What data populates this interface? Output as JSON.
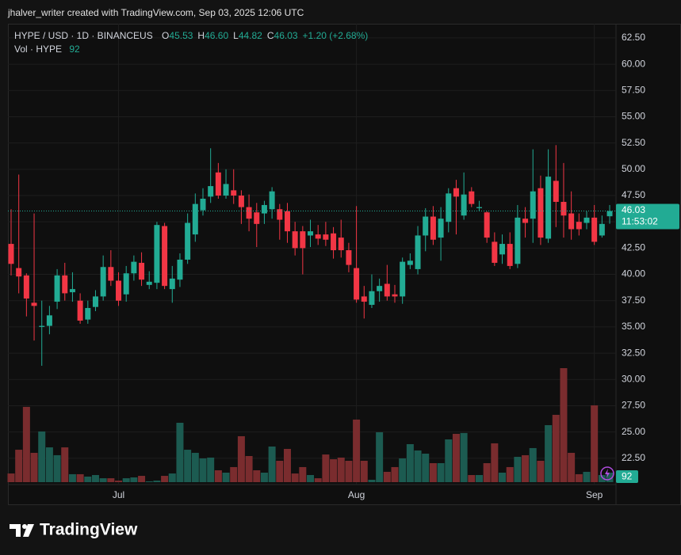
{
  "chart_data": {
    "type": "candlestick",
    "attribution": "jhalver_writer created with TradingView.com, Sep 03, 2025 12:06 UTC",
    "brand": "TradingView",
    "legend": {
      "symbol": "HYPE / USD · 1D · BINANCEUS",
      "fields": [
        {
          "label": "O",
          "value": "45.53"
        },
        {
          "label": "H",
          "value": "46.60"
        },
        {
          "label": "L",
          "value": "44.82"
        },
        {
          "label": "C",
          "value": "46.03"
        }
      ],
      "change": "+1.20 (+2.68%)",
      "volume_label": "Vol · HYPE",
      "volume_value": "92"
    },
    "last_price_label": "46.03",
    "countdown": "11:53:02",
    "up_color": "#22ab94",
    "down_color": "#f23645",
    "volume_up_color": "#1c5b51",
    "volume_down_color": "#7a2c2e",
    "grid": true,
    "categories": [
      null,
      null,
      null,
      null,
      null,
      null,
      null,
      null,
      null,
      null,
      null,
      null,
      null,
      null,
      "Jul",
      null,
      null,
      null,
      null,
      null,
      null,
      null,
      null,
      null,
      null,
      null,
      null,
      null,
      null,
      null,
      null,
      null,
      null,
      null,
      null,
      null,
      null,
      null,
      null,
      null,
      null,
      null,
      null,
      null,
      null,
      "Aug",
      null,
      null,
      null,
      null,
      null,
      null,
      null,
      null,
      null,
      null,
      null,
      null,
      null,
      null,
      null,
      null,
      null,
      null,
      null,
      null,
      null,
      null,
      null,
      null,
      null,
      null,
      null,
      null,
      null,
      null,
      "Sep",
      null,
      null
    ],
    "open": [
      42.9,
      40.6,
      39.9,
      37.3,
      35.0,
      35.1,
      37.4,
      39.9,
      38.3,
      37.5,
      35.7,
      36.9,
      37.9,
      40.7,
      39.4,
      38.1,
      40.1,
      41.1,
      39.0,
      39.2,
      44.6,
      38.6,
      39.5,
      41.4,
      43.8,
      46.1,
      47.4,
      49.7,
      47.5,
      48.0,
      47.5,
      46.4,
      45.9,
      45.8,
      46.2,
      46.2,
      46.0,
      44.1,
      44.1,
      43.7,
      43.8,
      43.8,
      43.9,
      43.5,
      42.3,
      40.6,
      37.9,
      37.1,
      38.4,
      39.1,
      38.1,
      37.9,
      40.9,
      40.5,
      43.7,
      45.5,
      43.5,
      45.0,
      48.2,
      45.6,
      47.9,
      46.3,
      45.9,
      43.1,
      41.9,
      42.9,
      41.0,
      45.3,
      45.3,
      48.2,
      43.4,
      48.9,
      46.9,
      45.8,
      45.0,
      44.9,
      45.4,
      43.7,
      45.53
    ],
    "high": [
      46.2,
      49.5,
      40.1,
      45.8,
      37.5,
      37.0,
      40.5,
      41.1,
      40.2,
      38.2,
      37.5,
      38.5,
      41.8,
      42.3,
      40.2,
      40.8,
      41.8,
      42.1,
      40.3,
      45.0,
      44.9,
      40.8,
      42.0,
      45.8,
      47.7,
      48.2,
      52.0,
      50.6,
      50.0,
      50.0,
      48.0,
      47.6,
      46.8,
      47.0,
      48.3,
      46.7,
      46.8,
      45.0,
      44.6,
      45.2,
      44.7,
      45.0,
      44.5,
      45.2,
      43.0,
      46.5,
      38.9,
      40.0,
      39.6,
      40.9,
      39.0,
      41.6,
      42.0,
      44.6,
      46.3,
      46.5,
      46.4,
      48.2,
      49.0,
      49.7,
      48.3,
      47.0,
      46.0,
      44.0,
      43.8,
      44.0,
      46.6,
      46.4,
      51.9,
      49.4,
      51.9,
      52.3,
      50.6,
      47.9,
      45.8,
      46.0,
      46.6,
      45.6,
      46.6
    ],
    "low": [
      39.9,
      38.2,
      36.0,
      33.7,
      31.3,
      34.3,
      36.7,
      37.5,
      37.4,
      35.3,
      35.3,
      36.5,
      37.5,
      38.9,
      37.0,
      37.4,
      39.4,
      38.9,
      38.6,
      38.6,
      38.6,
      37.3,
      38.8,
      41.0,
      43.1,
      45.6,
      46.8,
      47.2,
      47.2,
      46.7,
      44.8,
      44.1,
      42.6,
      44.8,
      45.3,
      43.3,
      43.0,
      41.8,
      40.0,
      42.6,
      42.8,
      42.7,
      41.5,
      41.6,
      40.2,
      37.3,
      35.8,
      36.8,
      37.4,
      37.5,
      37.3,
      37.2,
      40.5,
      40.0,
      42.2,
      42.8,
      41.3,
      44.0,
      43.8,
      45.2,
      46.4,
      46.0,
      43.0,
      40.8,
      41.0,
      40.5,
      40.6,
      43.5,
      43.0,
      42.8,
      43.0,
      44.5,
      43.5,
      43.3,
      43.7,
      44.3,
      42.8,
      43.5,
      44.82
    ],
    "close": [
      41.0,
      39.8,
      37.7,
      37.0,
      35.1,
      36.1,
      39.9,
      38.2,
      38.6,
      35.6,
      36.8,
      37.9,
      40.7,
      39.4,
      37.5,
      40.1,
      41.2,
      39.5,
      39.3,
      44.7,
      38.9,
      39.6,
      41.4,
      44.9,
      46.7,
      47.2,
      48.4,
      47.5,
      48.6,
      47.5,
      46.4,
      45.3,
      44.8,
      46.6,
      47.9,
      45.2,
      44.1,
      42.5,
      42.5,
      44.1,
      43.4,
      43.3,
      42.3,
      42.3,
      40.9,
      37.6,
      37.4,
      38.4,
      38.9,
      37.9,
      37.9,
      41.2,
      41.3,
      43.7,
      45.5,
      43.3,
      45.3,
      47.7,
      47.4,
      47.6,
      46.7,
      46.4,
      43.5,
      41.1,
      42.9,
      40.8,
      45.4,
      44.9,
      47.9,
      43.5,
      49.3,
      46.9,
      45.6,
      44.3,
      44.3,
      45.4,
      43.1,
      44.8,
      46.03
    ],
    "volume": [
      84,
      314,
      729,
      284,
      491,
      337,
      261,
      337,
      77,
      77,
      54,
      69,
      38,
      38,
      15,
      38,
      46,
      61,
      8,
      15,
      61,
      84,
      575,
      314,
      284,
      230,
      238,
      115,
      92,
      146,
      445,
      253,
      115,
      92,
      345,
      207,
      322,
      84,
      146,
      69,
      38,
      268,
      222,
      238,
      207,
      606,
      207,
      23,
      483,
      100,
      146,
      230,
      368,
      307,
      276,
      184,
      184,
      414,
      468,
      476,
      69,
      69,
      184,
      376,
      92,
      146,
      245,
      261,
      330,
      207,
      552,
      652,
      1104,
      284,
      77,
      100,
      744,
      69,
      92
    ],
    "ylim": [
      20.0,
      63.85
    ],
    "yticks": [
      {
        "value": 22.5,
        "label": "22.50"
      },
      {
        "value": 25,
        "label": "25.00"
      },
      {
        "value": 27.5,
        "label": "27.50"
      },
      {
        "value": 30,
        "label": "30.00"
      },
      {
        "value": 32.5,
        "label": "32.50"
      },
      {
        "value": 35,
        "label": "35.00"
      },
      {
        "value": 37.5,
        "label": "37.50"
      },
      {
        "value": 40,
        "label": "40.00"
      },
      {
        "value": 42.5,
        "label": "42.50"
      },
      {
        "value": 45,
        "label": "45.00"
      },
      {
        "value": 47.5,
        "label": "47.50"
      },
      {
        "value": 50,
        "label": "50.00"
      },
      {
        "value": 52.5,
        "label": "52.50"
      },
      {
        "value": 55,
        "label": "55.00"
      },
      {
        "value": 57.5,
        "label": "57.50"
      },
      {
        "value": 60,
        "label": "60.00"
      },
      {
        "value": 62.5,
        "label": "62.50"
      }
    ]
  }
}
